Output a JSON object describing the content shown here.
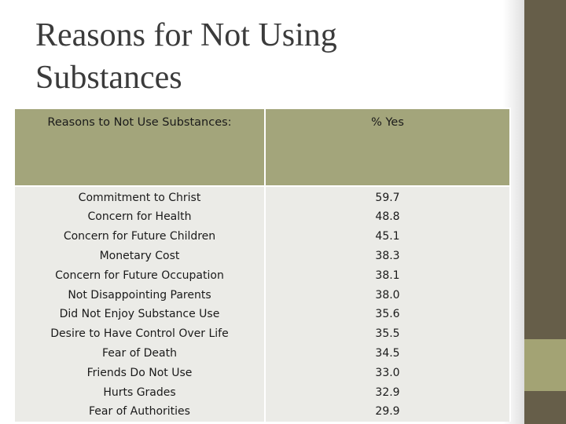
{
  "slide": {
    "title_line1": "Reasons for Not Using",
    "title_line2": "Substances"
  },
  "table": {
    "headers": [
      "Reasons to Not Use Substances:",
      "% Yes"
    ],
    "rows": [
      {
        "reason": "Commitment to Christ",
        "percent": "59.7"
      },
      {
        "reason": "Concern for Health",
        "percent": "48.8"
      },
      {
        "reason": "Concern for Future Children",
        "percent": "45.1"
      },
      {
        "reason": "Monetary Cost",
        "percent": "38.3"
      },
      {
        "reason": "Concern for Future Occupation",
        "percent": "38.1"
      },
      {
        "reason": "Not Disappointing Parents",
        "percent": "38.0"
      },
      {
        "reason": "Did Not Enjoy Substance Use",
        "percent": "35.6"
      },
      {
        "reason": "Desire to Have Control Over Life",
        "percent": "35.5"
      },
      {
        "reason": "Fear of Death",
        "percent": "34.5"
      },
      {
        "reason": "Friends Do Not Use",
        "percent": "33.0"
      },
      {
        "reason": "Hurts Grades",
        "percent": "32.9"
      },
      {
        "reason": "Fear of Authorities",
        "percent": "29.9"
      }
    ]
  },
  "colors": {
    "header_fill": "#a3a57b",
    "row_fill": "#ebebe7",
    "sidebar": "#665e49",
    "sidebar_accent": "#a3a374",
    "title_text": "#3b3b3b"
  }
}
